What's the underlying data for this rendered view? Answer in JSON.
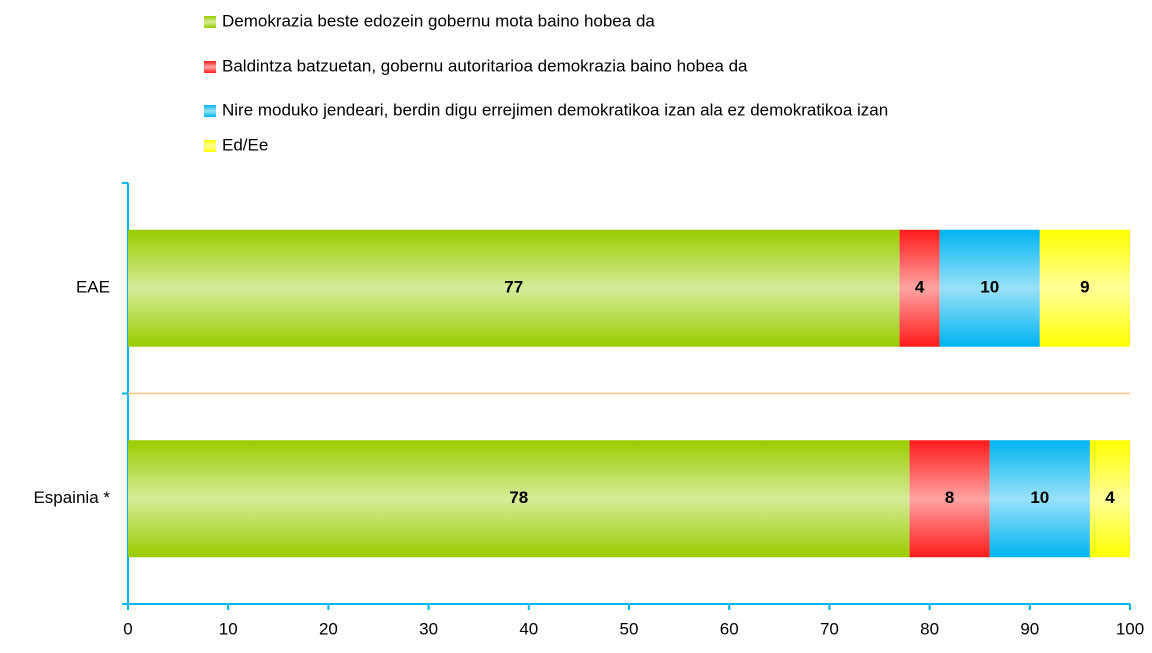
{
  "chart_data": {
    "type": "stacked_bar_horizontal",
    "categories": [
      "EAE",
      "Espainia *"
    ],
    "series": [
      {
        "name": "Demokrazia beste edozein gobernu mota baino hobea da",
        "color": "#99cc00",
        "values": [
          77,
          78
        ]
      },
      {
        "name": "Baldintza batzuetan, gobernu autoritarioa demokrazia baino hobea da",
        "color": "#ff1a1a",
        "values": [
          4,
          8
        ]
      },
      {
        "name": "Nire moduko jendeari, berdin digu errejimen demokratikoa izan ala ez demokratikoa izan",
        "color": "#00b4f0",
        "values": [
          10,
          10
        ]
      },
      {
        "name": "Ed/Ee",
        "color": "#ffff00",
        "values": [
          9,
          4
        ]
      }
    ],
    "xlim": [
      0,
      100
    ],
    "xticks": [
      0,
      10,
      20,
      30,
      40,
      50,
      60,
      70,
      80,
      90,
      100
    ],
    "axis_color": "#00b4f0",
    "divider_color": "#ffc080",
    "legend": "top"
  }
}
